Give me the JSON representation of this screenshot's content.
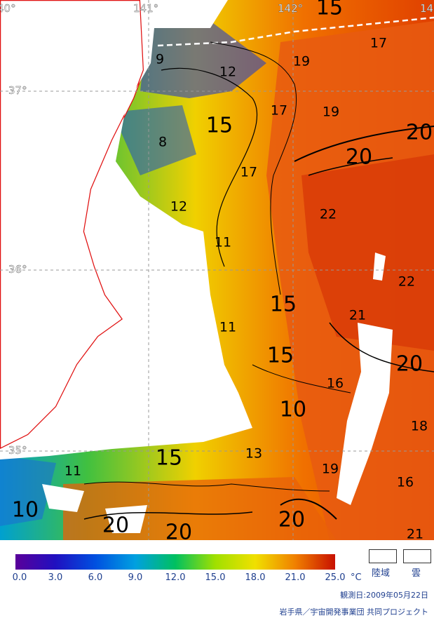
{
  "map": {
    "lon_labels": [
      "40°",
      "141°",
      "142°",
      "14"
    ],
    "lat_labels": [
      "37°",
      "36°",
      "35°"
    ],
    "contour_labels": [
      {
        "text": "15",
        "size": "big"
      },
      {
        "text": "9",
        "size": "med"
      },
      {
        "text": "12",
        "size": "med"
      },
      {
        "text": "17",
        "size": "med"
      },
      {
        "text": "19",
        "size": "med"
      },
      {
        "text": "17",
        "size": "med"
      },
      {
        "text": "19",
        "size": "med"
      },
      {
        "text": "15",
        "size": "big"
      },
      {
        "text": "8",
        "size": "med"
      },
      {
        "text": "20",
        "size": "big"
      },
      {
        "text": "20",
        "size": "big"
      },
      {
        "text": "17",
        "size": "med"
      },
      {
        "text": "22",
        "size": "med"
      },
      {
        "text": "12",
        "size": "med"
      },
      {
        "text": "11",
        "size": "med"
      },
      {
        "text": "15",
        "size": "big"
      },
      {
        "text": "22",
        "size": "med"
      },
      {
        "text": "21",
        "size": "med"
      },
      {
        "text": "11",
        "size": "med"
      },
      {
        "text": "15",
        "size": "big"
      },
      {
        "text": "20",
        "size": "big"
      },
      {
        "text": "16",
        "size": "med"
      },
      {
        "text": "10",
        "size": "big"
      },
      {
        "text": "18",
        "size": "med"
      },
      {
        "text": "15",
        "size": "big"
      },
      {
        "text": "13",
        "size": "med"
      },
      {
        "text": "19",
        "size": "med"
      },
      {
        "text": "11",
        "size": "med"
      },
      {
        "text": "16",
        "size": "med"
      },
      {
        "text": "10",
        "size": "big"
      },
      {
        "text": "20",
        "size": "big"
      },
      {
        "text": "20",
        "size": "big"
      },
      {
        "text": "20",
        "size": "big"
      },
      {
        "text": "21",
        "size": "med"
      }
    ]
  },
  "colorbar": {
    "ticks": [
      "0.0",
      "3.0",
      "6.0",
      "9.0",
      "12.0",
      "15.0",
      "18.0",
      "21.0",
      "25.0"
    ],
    "unit": "°C",
    "colors": [
      "#5a009a",
      "#2010c0",
      "#0050e0",
      "#00a0e0",
      "#00c060",
      "#a0e000",
      "#f0e000",
      "#f08000",
      "#c81000"
    ]
  },
  "legend": {
    "land_label": "陸域",
    "cloud_label": "雲"
  },
  "footer": {
    "observation_date": "観測日:2009年05月22日",
    "credit": "岩手県／宇宙開発事業団 共同プロジェクト"
  },
  "colors": {
    "land_border": "#e01010",
    "grid": "#999999",
    "text_blue": "#1f3f8f"
  }
}
